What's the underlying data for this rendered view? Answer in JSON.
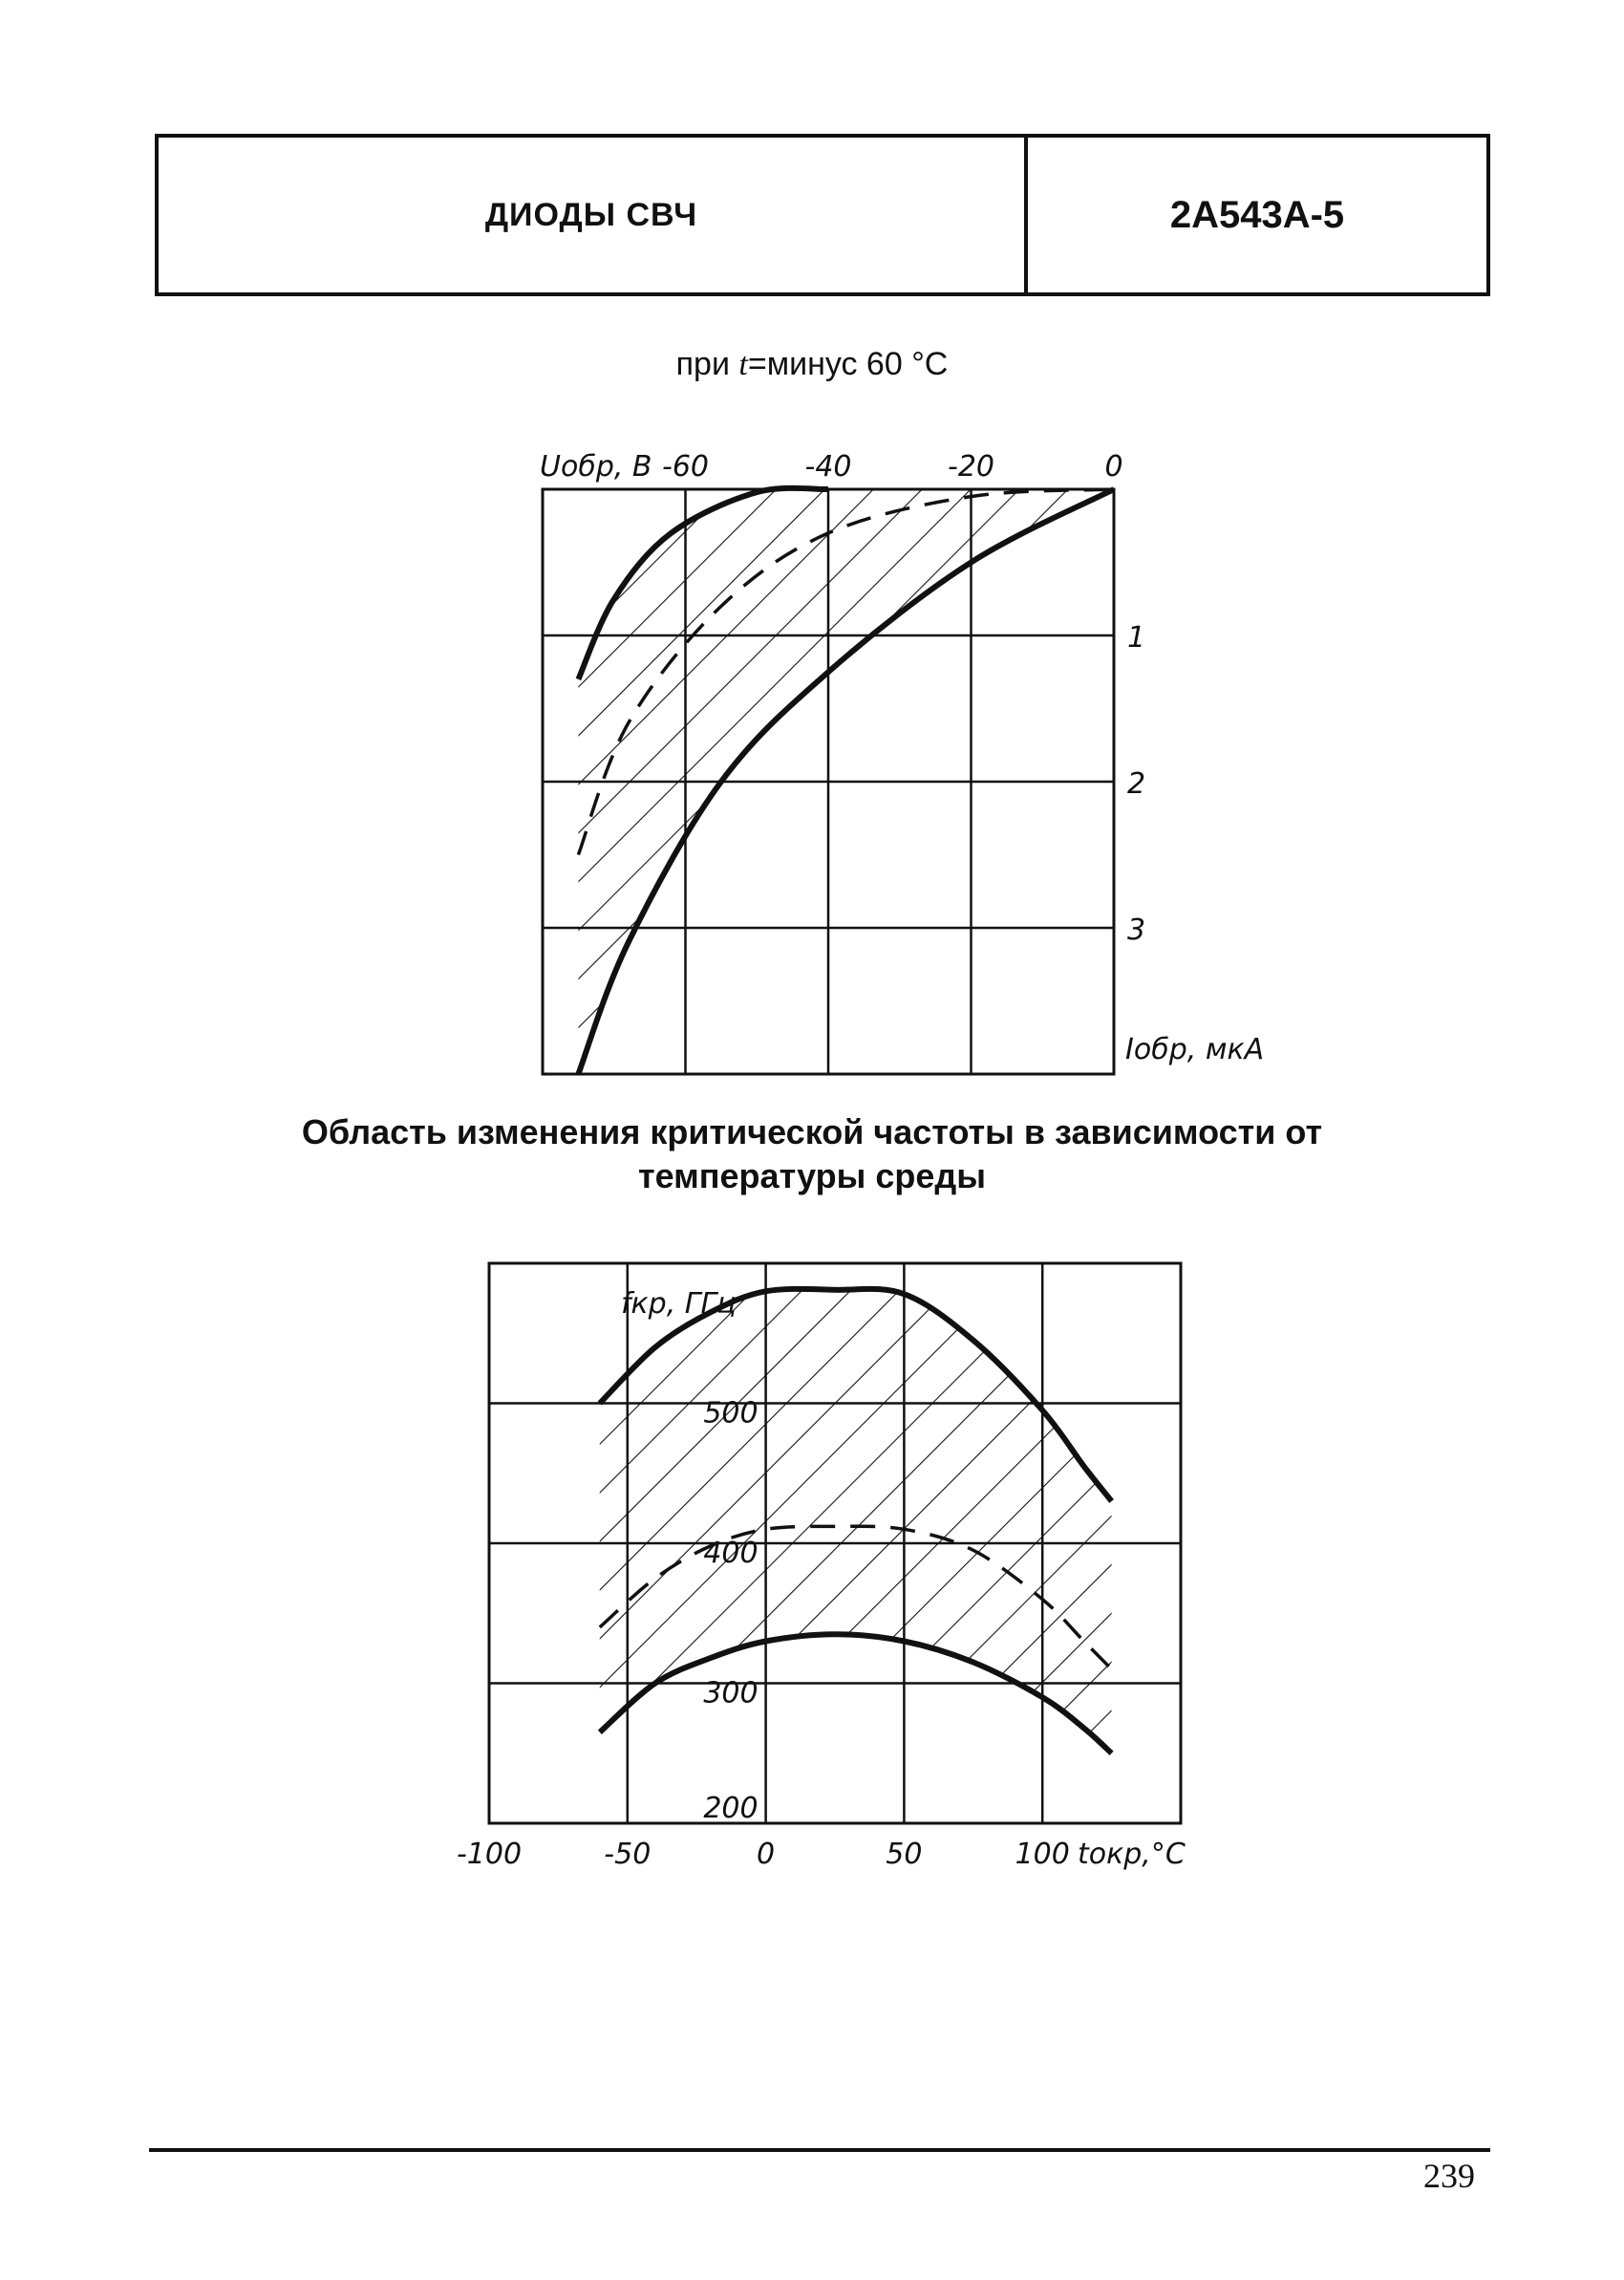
{
  "header": {
    "left_title": "ДИОДЫ СВЧ",
    "right_title": "2А543А-5"
  },
  "subtitle": {
    "prefix": "при ",
    "var": "t",
    "suffix": "=минус 60 °С"
  },
  "section_title": "Область изменения критической частоты в зависимости от температуры среды",
  "page_number": "239",
  "chart_data": [
    {
      "type": "area",
      "title": "",
      "xlabel": "Uобр, В",
      "ylabel": "Iобр, мкА",
      "x_ticks": [
        "-60",
        "-40",
        "-20",
        "0"
      ],
      "y_ticks": [
        "1",
        "2",
        "3"
      ],
      "xlim": [
        -80,
        0
      ],
      "ylim": [
        0,
        4
      ],
      "y_inverted": true,
      "grid": true,
      "series": [
        {
          "style": "solid-upper-bound",
          "points": [
            [
              -75,
              1.3
            ],
            [
              -70,
              0.75
            ],
            [
              -62,
              0.3
            ],
            [
              -50,
              0.02
            ],
            [
              -40,
              0.0
            ]
          ]
        },
        {
          "style": "dashed-median",
          "points": [
            [
              -75,
              2.5
            ],
            [
              -68,
              1.6
            ],
            [
              -55,
              0.8
            ],
            [
              -40,
              0.3
            ],
            [
              -20,
              0.05
            ],
            [
              0,
              0.0
            ]
          ]
        },
        {
          "style": "solid-lower-bound",
          "points": [
            [
              -75,
              4.0
            ],
            [
              -68,
              3.1
            ],
            [
              -55,
              2.0
            ],
            [
              -40,
              1.25
            ],
            [
              -20,
              0.5
            ],
            [
              0,
              0.0
            ]
          ]
        }
      ],
      "hatched_region": "between bounds"
    },
    {
      "type": "area",
      "title": "",
      "xlabel": "tокр,°C",
      "ylabel": "fкр, ГГц",
      "x_ticks": [
        "-100",
        "-50",
        "0",
        "50",
        "100"
      ],
      "y_ticks": [
        "200",
        "300",
        "400",
        "500"
      ],
      "xlim": [
        -100,
        150
      ],
      "ylim": [
        200,
        600
      ],
      "grid": true,
      "series": [
        {
          "style": "solid-upper-bound",
          "points": [
            [
              -60,
              500
            ],
            [
              -40,
              540
            ],
            [
              -20,
              565
            ],
            [
              0,
              580
            ],
            [
              25,
              581
            ],
            [
              50,
              578
            ],
            [
              75,
              545
            ],
            [
              100,
              495
            ],
            [
              115,
              455
            ],
            [
              125,
              430
            ]
          ]
        },
        {
          "style": "dashed-median",
          "points": [
            [
              -60,
              340
            ],
            [
              -40,
              375
            ],
            [
              -20,
              398
            ],
            [
              0,
              410
            ],
            [
              25,
              412
            ],
            [
              50,
              410
            ],
            [
              75,
              395
            ],
            [
              100,
              360
            ],
            [
              115,
              330
            ],
            [
              125,
              310
            ]
          ]
        },
        {
          "style": "solid-lower-bound",
          "points": [
            [
              -60,
              265
            ],
            [
              -40,
              300
            ],
            [
              -20,
              318
            ],
            [
              0,
              330
            ],
            [
              25,
              335
            ],
            [
              50,
              330
            ],
            [
              75,
              315
            ],
            [
              100,
              290
            ],
            [
              115,
              268
            ],
            [
              125,
              250
            ]
          ]
        }
      ],
      "hatched_region": "between bounds"
    }
  ]
}
